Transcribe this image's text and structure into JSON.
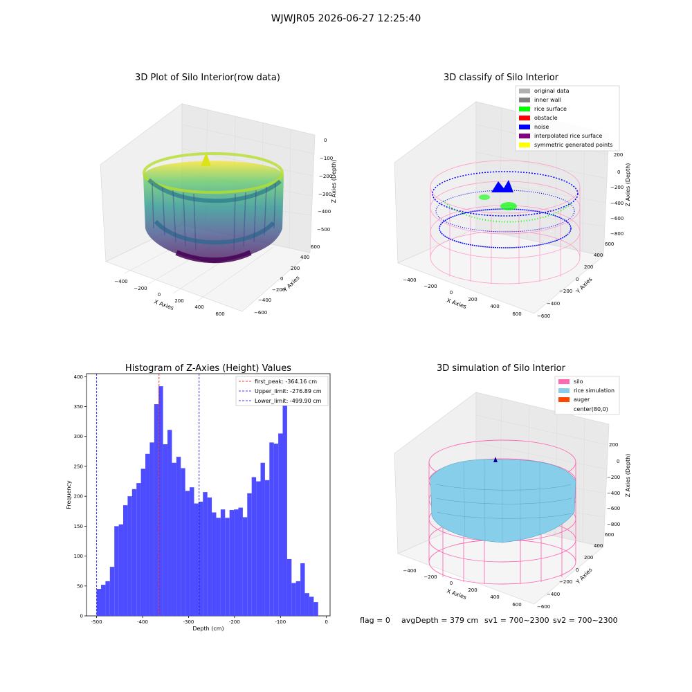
{
  "figure": {
    "suptitle": "WJWJR05 2026-06-27 12:25:40",
    "footer": {
      "flag": "flag = 0",
      "avg_depth": "avgDepth = 379 cm",
      "sv1": "sv1 = 700~2300",
      "sv2": "sv2 = 700~2300"
    }
  },
  "raw_plot": {
    "title": "3D Plot of Silo Interior(row data)",
    "xlabel": "X Axies",
    "ylabel": "Y Axies",
    "zlabel": "Z Axies (Depth)",
    "xticks": [
      "−400",
      "−200",
      "0",
      "200",
      "400",
      "600"
    ],
    "yticks": [
      "−600",
      "−400",
      "−200",
      "0",
      "200",
      "400",
      "600"
    ],
    "zticks": [
      "0",
      "−100",
      "−200",
      "−300",
      "−400",
      "−500"
    ],
    "colormap": [
      "#440154",
      "#3b528b",
      "#21918c",
      "#5ec962",
      "#fde725"
    ]
  },
  "classify_plot": {
    "title": "3D classify of Silo Interior",
    "xlabel": "X Axies",
    "ylabel": "Y Axies",
    "zlabel": "Z Axies (Depth)",
    "xticks": [
      "−400",
      "−200",
      "0",
      "200",
      "400",
      "600"
    ],
    "yticks": [
      "−600",
      "−400",
      "−200",
      "0",
      "200",
      "400",
      "600"
    ],
    "zticks": [
      "200",
      "0",
      "−200",
      "−400",
      "−600",
      "−800"
    ],
    "legend": [
      {
        "label": "original data",
        "color": "#b0b0b0"
      },
      {
        "label": "inner wall",
        "color": "#808080"
      },
      {
        "label": "rice surface",
        "color": "#00ff00"
      },
      {
        "label": "obstacle",
        "color": "#ff0000"
      },
      {
        "label": "noise",
        "color": "#0000ff"
      },
      {
        "label": "interpolated rice surface",
        "color": "#800080"
      },
      {
        "label": "symmetric generated points",
        "color": "#ffff00"
      }
    ]
  },
  "histogram": {
    "title": "Histogram of Z-Axies (Height) Values",
    "xlabel": "Depth (cm)",
    "ylabel": "Frequency",
    "legend": [
      {
        "label": "first_peak: -364.16 cm",
        "color": "#ff0000"
      },
      {
        "label": "Upper_limit: -276.89 cm",
        "color": "#0000ff"
      },
      {
        "label": "Lower_limit: -499.90 cm",
        "color": "#0000ff"
      }
    ]
  },
  "chart_data": {
    "type": "bar",
    "title": "Histogram of Z-Axies (Height) Values",
    "xlabel": "Depth (cm)",
    "ylabel": "Frequency",
    "xlim": [
      -522,
      8
    ],
    "ylim": [
      0,
      405
    ],
    "xticks": [
      -500,
      -400,
      -300,
      -200,
      -100,
      0
    ],
    "yticks": [
      0,
      50,
      100,
      150,
      200,
      250,
      300,
      350,
      400
    ],
    "bin_start": -500,
    "bin_width": 9.64,
    "values": [
      45,
      52,
      58,
      82,
      150,
      153,
      185,
      200,
      212,
      222,
      246,
      271,
      290,
      354,
      384,
      287,
      311,
      256,
      266,
      247,
      209,
      215,
      188,
      191,
      207,
      198,
      173,
      164,
      178,
      164,
      177,
      178,
      181,
      165,
      205,
      232,
      225,
      256,
      227,
      290,
      288,
      305,
      378,
      95,
      55,
      58,
      88,
      38,
      32,
      23
    ],
    "vlines": [
      {
        "x": -364.16,
        "color": "#ff0000"
      },
      {
        "x": -276.89,
        "color": "#0000ff"
      },
      {
        "x": -499.9,
        "color": "#0000ff"
      }
    ],
    "bar_color": "#4d4dff",
    "grid": false,
    "legend_position": "top-right"
  },
  "simulation_plot": {
    "title": "3D simulation of Silo Interior",
    "xlabel": "X Axies",
    "ylabel": "Y Axies",
    "zlabel": "Z Axies (Depth)",
    "xticks": [
      "−400",
      "−200",
      "0",
      "200",
      "400",
      "600"
    ],
    "yticks": [
      "−600",
      "−400",
      "−200",
      "0",
      "200",
      "400",
      "600"
    ],
    "zticks": [
      "200",
      "0",
      "−200",
      "−400",
      "−600",
      "−800"
    ],
    "legend": [
      {
        "label": "silo",
        "color": "#ff69b4"
      },
      {
        "label": "rice simulation",
        "color": "#87ceeb"
      },
      {
        "label": "auger",
        "color": "#ff4500"
      },
      {
        "label": "center(80,0)",
        "color": ""
      }
    ]
  }
}
